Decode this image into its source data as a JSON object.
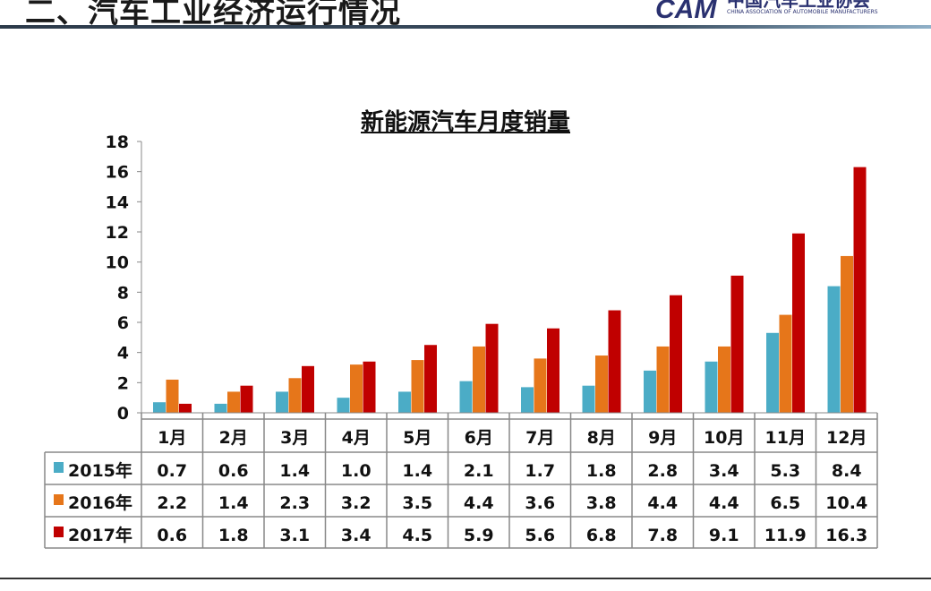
{
  "header": {
    "title": "二、汽车工业经济运行情况",
    "logo_mark": "CAM",
    "logo_cn": "中国汽车工业协会",
    "logo_en": "CHINA ASSOCIATION OF AUTOMOBILE MANUFACTURERS"
  },
  "chart_data": {
    "type": "bar",
    "title": "新能源汽车月度销量",
    "categories": [
      "1月",
      "2月",
      "3月",
      "4月",
      "5月",
      "6月",
      "7月",
      "8月",
      "9月",
      "10月",
      "11月",
      "12月"
    ],
    "ylim": [
      0,
      18
    ],
    "yticks": [
      0,
      2,
      4,
      6,
      8,
      10,
      12,
      14,
      16,
      18
    ],
    "grid": false,
    "legend": "data-table",
    "series": [
      {
        "name": "2015年",
        "color": "#4bacc6",
        "values": [
          0.7,
          0.6,
          1.4,
          1.0,
          1.4,
          2.1,
          1.7,
          1.8,
          2.8,
          3.4,
          5.3,
          8.4
        ]
      },
      {
        "name": "2016年",
        "color": "#e6761a",
        "values": [
          2.2,
          1.4,
          2.3,
          3.2,
          3.5,
          4.4,
          3.6,
          3.8,
          4.4,
          4.4,
          6.5,
          10.4
        ]
      },
      {
        "name": "2017年",
        "color": "#c00000",
        "values": [
          0.6,
          1.8,
          3.1,
          3.4,
          4.5,
          5.9,
          5.6,
          6.8,
          7.8,
          9.1,
          11.9,
          16.3
        ]
      }
    ]
  }
}
